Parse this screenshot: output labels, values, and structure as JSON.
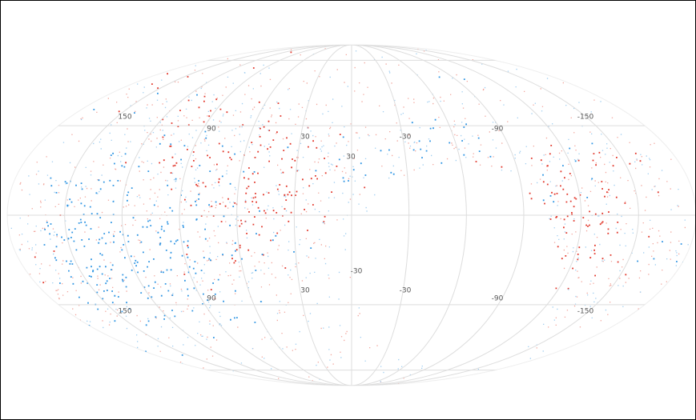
{
  "map": {
    "longitude_labels_upper": [
      "150",
      "90",
      "30",
      "-30",
      "-90",
      "-150"
    ],
    "longitude_labels_lower": [
      "150",
      "90",
      "30",
      "-30",
      "-90",
      "-150"
    ],
    "latitude_labels": [
      "30",
      "-30"
    ]
  }
}
